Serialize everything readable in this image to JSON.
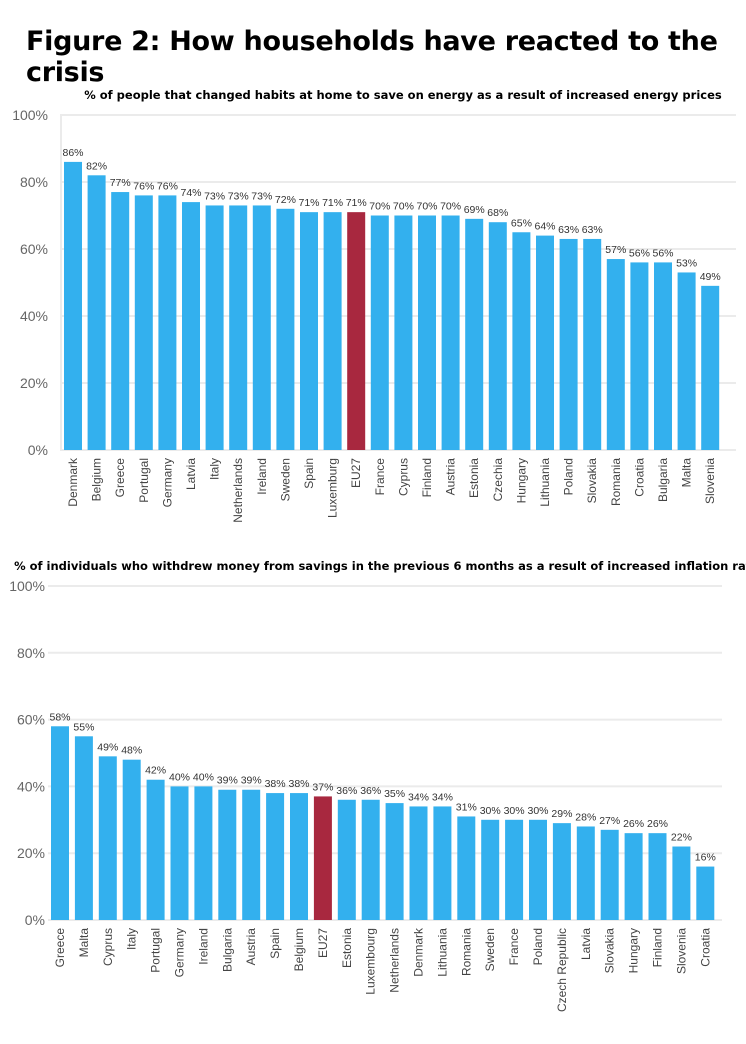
{
  "title": "Figure 2: How households have reacted to the crisis",
  "colors": {
    "bar": "#33b0ee",
    "highlight": "#a8283f",
    "grid": "#ebebeb"
  },
  "chart_data": [
    {
      "type": "bar",
      "title": "% of people that changed habits at home to save on energy as a result of increased energy prices",
      "ylim": [
        0,
        100
      ],
      "yticks": [
        "0%",
        "20%",
        "40%",
        "60%",
        "80%",
        "100%"
      ],
      "grid": true,
      "highlight": "EU27",
      "categories": [
        "Denmark",
        "Belgium",
        "Greece",
        "Portugal",
        "Germany",
        "Latvia",
        "Italy",
        "Netherlands",
        "Ireland",
        "Sweden",
        "Spain",
        "Luxemburg",
        "EU27",
        "France",
        "Cyprus",
        "Finland",
        "Austria",
        "Estonia",
        "Czechia",
        "Hungary",
        "Lithuania",
        "Poland",
        "Slovakia",
        "Romania",
        "Croatia",
        "Bulgaria",
        "Malta",
        "Slovenia"
      ],
      "values": [
        86,
        82,
        77,
        76,
        76,
        74,
        73,
        73,
        73,
        72,
        71,
        71,
        71,
        70,
        70,
        70,
        70,
        69,
        68,
        65,
        64,
        63,
        63,
        57,
        56,
        56,
        53,
        49
      ],
      "labels": [
        "86%",
        "82%",
        "77%",
        "76%",
        "76%",
        "74%",
        "73%",
        "73%",
        "73%",
        "72%",
        "71%",
        "71%",
        "71%",
        "70%",
        "70%",
        "70%",
        "70%",
        "69%",
        "68%",
        "65%",
        "64%",
        "63%",
        "63%",
        "57%",
        "56%",
        "56%",
        "53%",
        "49%"
      ]
    },
    {
      "type": "bar",
      "title": "% of individuals who withdrew money from savings in the previous 6 months as a result of increased inflation rates",
      "ylim": [
        0,
        100
      ],
      "yticks": [
        "0%",
        "20%",
        "40%",
        "60%",
        "80%",
        "100%"
      ],
      "grid": true,
      "highlight": "EU27",
      "categories": [
        "Greece",
        "Malta",
        "Cyprus",
        "Italy",
        "Portugal",
        "Germany",
        "Ireland",
        "Bulgaria",
        "Austria",
        "Spain",
        "Belgium",
        "EU27",
        "Estonia",
        "Luxembourg",
        "Netherlands",
        "Denmark",
        "Lithuania",
        "Romania",
        "Sweden",
        "France",
        "Poland",
        "Czech Republic",
        "Latvia",
        "Slovakia",
        "Hungary",
        "Finland",
        "Slovenia",
        "Croatia"
      ],
      "values": [
        58,
        55,
        49,
        48,
        42,
        40,
        40,
        39,
        39,
        38,
        38,
        37,
        36,
        36,
        35,
        34,
        34,
        31,
        30,
        30,
        30,
        29,
        28,
        27,
        26,
        26,
        22,
        16
      ],
      "labels": [
        "58%",
        "55%",
        "49%",
        "48%",
        "42%",
        "40%",
        "40%",
        "39%",
        "39%",
        "38%",
        "38%",
        "37%",
        "36%",
        "36%",
        "35%",
        "34%",
        "34%",
        "31%",
        "30%",
        "30%",
        "30%",
        "29%",
        "28%",
        "27%",
        "26%",
        "26%",
        "22%",
        "16%"
      ]
    }
  ]
}
